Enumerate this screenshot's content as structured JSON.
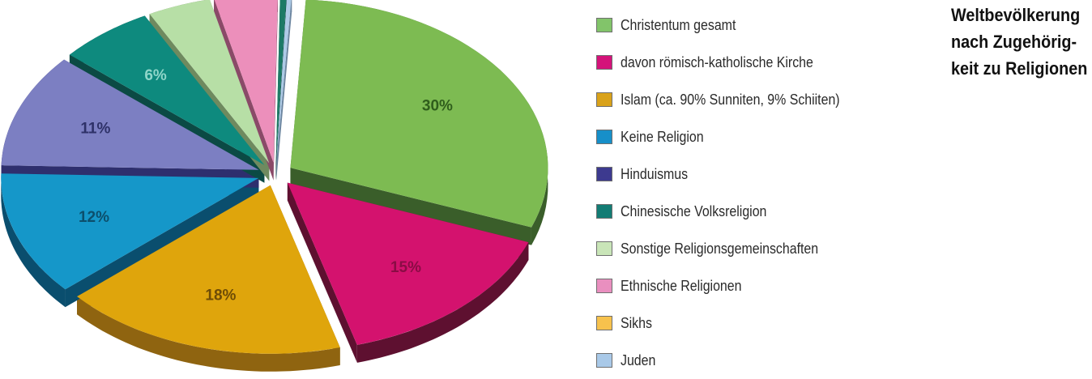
{
  "title_lines": [
    "Weltbevölkerung",
    "nach Zugehörig-",
    "keit zu Religionen"
  ],
  "chart_data": {
    "type": "pie",
    "title": "Weltbevölkerung nach Zugehörigkeit zu Religionen",
    "style": "3d-exploded",
    "legend_position": "right",
    "slices": [
      {
        "label": "Christentum gesamt",
        "value": 30,
        "display": "30%",
        "color": "#7dbb52",
        "shade": "#3a5e2a",
        "text_color": "#2f5e1c"
      },
      {
        "label": "davon römisch-katholische Kirche",
        "value": 15,
        "display": "15%",
        "color": "#d4126e",
        "shade": "#5e1030",
        "text_color": "#8a0c45"
      },
      {
        "label": "Islam (ca. 90% Sunniten, 9% Schiiten)",
        "value": 18,
        "display": "18%",
        "color": "#dfa50c",
        "shade": "#8f6410",
        "text_color": "#6e4c06"
      },
      {
        "label": "Keine Religion",
        "value": 12,
        "display": "12%",
        "color": "#1597c9",
        "shade": "#0a4e6e",
        "text_color": "#0c4f6c"
      },
      {
        "label": "Hinduismus",
        "value": 11,
        "display": "11%",
        "color": "#7c7fc2",
        "shade": "#2e2f6e",
        "text_color": "#2e3168"
      },
      {
        "label": "Chinesische Volksreligion",
        "value": 6,
        "display": "6%",
        "color": "#0e8a7e",
        "shade": "#0b4a44",
        "text_color": "#8fd6c9"
      },
      {
        "label": "Sonstige Religionsgemeinschaften",
        "value": 4,
        "display": "4%",
        "color": "#b7dfa6",
        "shade": "#6f8a5f",
        "text_color": "#333333"
      },
      {
        "label": "Ethnische Religionen",
        "value": 4,
        "display": "4%",
        "color": "#ec8fbb",
        "shade": "#8a4a68",
        "text_color": "#6a1f43"
      },
      {
        "label": "Sikhs",
        "value": 0.4,
        "display": "0,4%",
        "color": "#1c7a66",
        "shade": "#0b4237",
        "text_color": "#333333"
      },
      {
        "label": "Juden",
        "value": 0.3,
        "display": "0,3%",
        "color": "#aecbe7",
        "shade": "#6d86a0",
        "text_color": "#333333"
      }
    ]
  },
  "legend": [
    {
      "label": "Christentum gesamt",
      "color": "#82c46a"
    },
    {
      "label": "davon römisch-katholische Kirche",
      "color": "#d4137a"
    },
    {
      "label": "Islam (ca. 90% Sunniten, 9% Schiiten)",
      "color": "#d9a21a"
    },
    {
      "label": "Keine Religion",
      "color": "#178fc9"
    },
    {
      "label": "Hinduismus",
      "color": "#3d3a8f"
    },
    {
      "label": "Chinesische Volksreligion",
      "color": "#137c74"
    },
    {
      "label": "Sonstige Religionsgemeinschaften",
      "color": "#c9e5b8"
    },
    {
      "label": "Ethnische Religionen",
      "color": "#e98fbf"
    },
    {
      "label": "Sikhs",
      "color": "#f7c24d"
    },
    {
      "label": "Juden",
      "color": "#a9c9e8"
    }
  ]
}
